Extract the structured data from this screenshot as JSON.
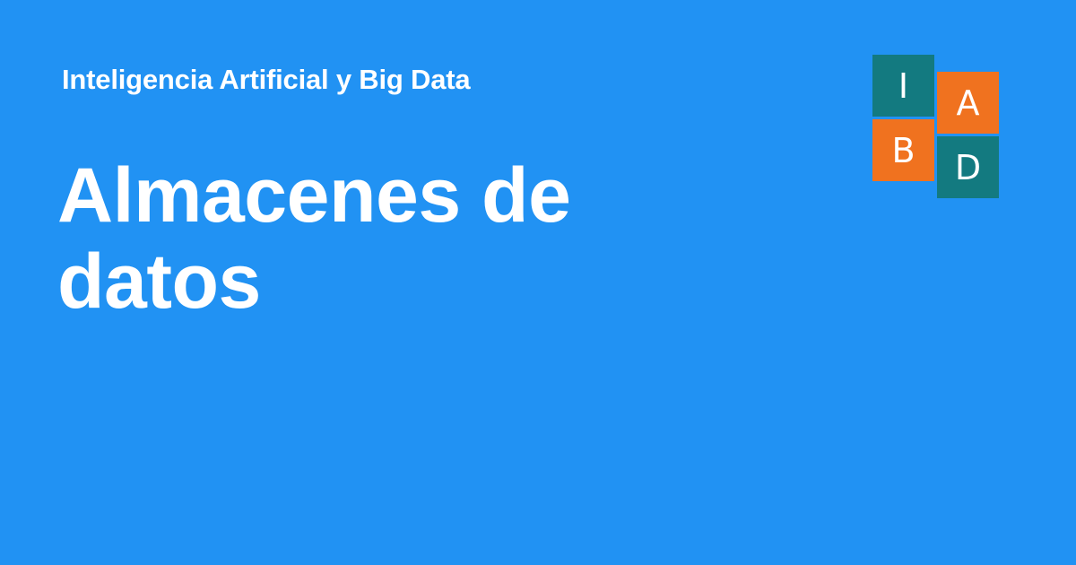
{
  "colors": {
    "background": "#2192f3",
    "teal": "#137a80",
    "orange": "#f0721f",
    "text": "#ffffff"
  },
  "header": {
    "site_name": "Inteligencia Artificial y Big Data"
  },
  "main": {
    "title": "Almacenes de datos"
  },
  "logo": {
    "tiles": [
      {
        "letter": "I",
        "color": "teal"
      },
      {
        "letter": "A",
        "color": "orange"
      },
      {
        "letter": "B",
        "color": "orange"
      },
      {
        "letter": "D",
        "color": "teal"
      }
    ]
  }
}
